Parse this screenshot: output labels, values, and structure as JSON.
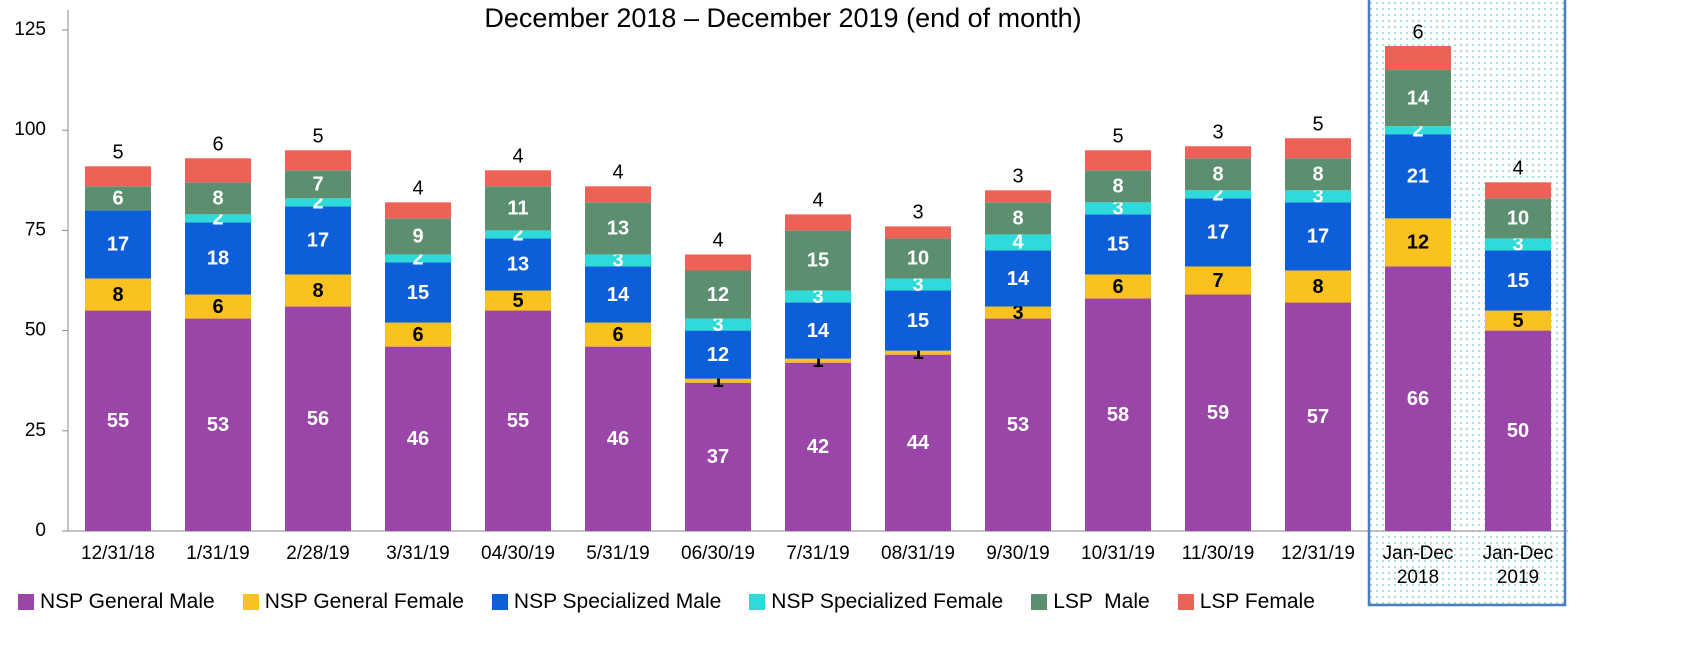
{
  "chart_data": {
    "type": "stacked_bar",
    "title": "December 2018 – December 2019 (end of month)",
    "categories": [
      "12/31/18",
      "1/31/19",
      "2/28/19",
      "3/31/19",
      "04/30/19",
      "5/31/19",
      "06/30/19",
      "7/31/19",
      "08/31/19",
      "9/30/19",
      "10/31/19",
      "11/30/19",
      "12/31/19",
      "Jan-Dec 2018",
      "Jan-Dec 2019"
    ],
    "series": [
      {
        "name": "NSP General Male",
        "color": "#9a45a8",
        "values": [
          55,
          53,
          56,
          46,
          55,
          46,
          37,
          42,
          44,
          53,
          58,
          59,
          57,
          66,
          50
        ]
      },
      {
        "name": "NSP General Female",
        "color": "#f9c21e",
        "values": [
          8,
          6,
          8,
          6,
          5,
          6,
          1,
          1,
          1,
          3,
          6,
          7,
          8,
          12,
          5
        ]
      },
      {
        "name": "NSP Specialized Male",
        "color": "#0c5fd9",
        "values": [
          17,
          18,
          17,
          15,
          13,
          14,
          12,
          14,
          15,
          14,
          15,
          17,
          17,
          21,
          15
        ]
      },
      {
        "name": "NSP Specialized Female",
        "color": "#2fdadb",
        "values": [
          null,
          2,
          2,
          2,
          2,
          3,
          3,
          3,
          3,
          4,
          3,
          2,
          3,
          2,
          3
        ]
      },
      {
        "name": "LSP  Male",
        "color": "#5b8f70",
        "values": [
          6,
          8,
          7,
          9,
          11,
          13,
          12,
          15,
          10,
          8,
          8,
          8,
          8,
          14,
          10
        ]
      },
      {
        "name": "LSP Female",
        "color": "#ee6157",
        "values": [
          5,
          6,
          5,
          4,
          4,
          4,
          4,
          4,
          3,
          3,
          5,
          3,
          5,
          6,
          4
        ]
      }
    ],
    "ylim": [
      0,
      125
    ],
    "yticks": [
      0,
      25,
      50,
      75,
      100,
      125
    ],
    "grid": false,
    "legend": "bottom"
  }
}
